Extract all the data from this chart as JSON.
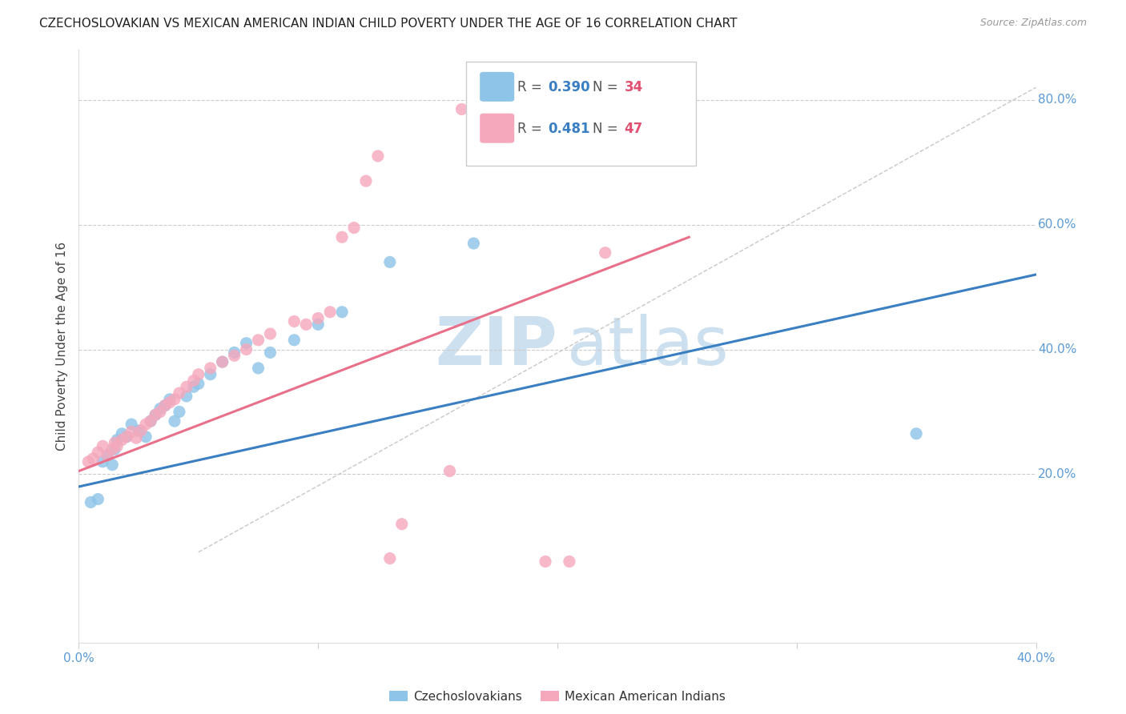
{
  "title": "CZECHOSLOVAKIAN VS MEXICAN AMERICAN INDIAN CHILD POVERTY UNDER THE AGE OF 16 CORRELATION CHART",
  "source": "Source: ZipAtlas.com",
  "ylabel": "Child Poverty Under the Age of 16",
  "xmin": 0.0,
  "xmax": 0.4,
  "ymin": -0.07,
  "ymax": 0.88,
  "color_blue": "#8ec4e8",
  "color_pink": "#f5a8bc",
  "color_line_blue": "#3a7fc1",
  "color_line_pink": "#e8708a",
  "color_diag": "#c8c8c8",
  "color_axis_text": "#5b9bd5",
  "color_title": "#222222",
  "color_source": "#999999",
  "color_watermark": "#cce0f0",
  "color_grid": "#cccccc",
  "blue_scatter_x": [
    0.005,
    0.008,
    0.01,
    0.012,
    0.014,
    0.015,
    0.016,
    0.018,
    0.02,
    0.022,
    0.025,
    0.028,
    0.03,
    0.032,
    0.034,
    0.036,
    0.038,
    0.04,
    0.042,
    0.045,
    0.048,
    0.05,
    0.055,
    0.06,
    0.065,
    0.07,
    0.075,
    0.08,
    0.09,
    0.1,
    0.11,
    0.13,
    0.165,
    0.35
  ],
  "blue_scatter_y": [
    0.155,
    0.16,
    0.22,
    0.23,
    0.215,
    0.24,
    0.255,
    0.265,
    0.26,
    0.28,
    0.27,
    0.26,
    0.285,
    0.295,
    0.305,
    0.31,
    0.32,
    0.285,
    0.3,
    0.325,
    0.34,
    0.345,
    0.36,
    0.38,
    0.395,
    0.41,
    0.37,
    0.395,
    0.415,
    0.44,
    0.46,
    0.54,
    0.57,
    0.265
  ],
  "pink_scatter_x": [
    0.004,
    0.006,
    0.008,
    0.01,
    0.012,
    0.014,
    0.015,
    0.016,
    0.018,
    0.02,
    0.022,
    0.024,
    0.026,
    0.028,
    0.03,
    0.032,
    0.034,
    0.036,
    0.038,
    0.04,
    0.042,
    0.045,
    0.048,
    0.05,
    0.055,
    0.06,
    0.065,
    0.07,
    0.075,
    0.08,
    0.09,
    0.095,
    0.1,
    0.105,
    0.11,
    0.115,
    0.12,
    0.125,
    0.13,
    0.135,
    0.155,
    0.16,
    0.175,
    0.185,
    0.195,
    0.205,
    0.22
  ],
  "pink_scatter_y": [
    0.22,
    0.225,
    0.235,
    0.245,
    0.23,
    0.24,
    0.25,
    0.245,
    0.255,
    0.26,
    0.268,
    0.258,
    0.27,
    0.28,
    0.285,
    0.295,
    0.3,
    0.31,
    0.315,
    0.32,
    0.33,
    0.34,
    0.35,
    0.36,
    0.37,
    0.38,
    0.39,
    0.4,
    0.415,
    0.425,
    0.445,
    0.44,
    0.45,
    0.46,
    0.58,
    0.595,
    0.67,
    0.71,
    0.065,
    0.12,
    0.205,
    0.785,
    0.79,
    0.72,
    0.06,
    0.06,
    0.555
  ],
  "blue_line_x": [
    0.0,
    0.4
  ],
  "blue_line_y": [
    0.18,
    0.52
  ],
  "pink_line_x": [
    0.0,
    0.255
  ],
  "pink_line_y": [
    0.205,
    0.58
  ],
  "diag_line_x": [
    0.05,
    0.4
  ],
  "diag_line_y": [
    0.075,
    0.82
  ]
}
